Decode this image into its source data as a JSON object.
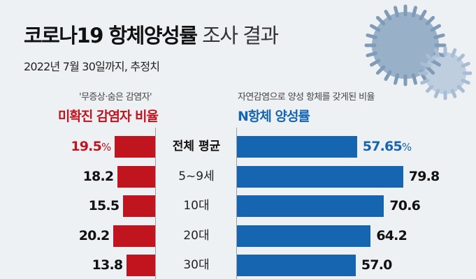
{
  "header": {
    "title_bold": "코로나19 항체양성률",
    "title_light": "조사 결과",
    "subtitle": "2022년 7월 30일까지, 추정치"
  },
  "colors": {
    "red": "#c0141f",
    "blue": "#1565b0",
    "background": "#eef1f4"
  },
  "chart_data": {
    "type": "bar",
    "categories": [
      "전체 평균",
      "5~9세",
      "10대",
      "20대",
      "30대"
    ],
    "series": [
      {
        "name": "미확진 감염자 비율",
        "subtitle": "'무증상·숨은 감염자'",
        "values": [
          19.5,
          18.2,
          15.5,
          20.2,
          13.8
        ],
        "labels": [
          "19.5",
          "18.2",
          "15.5",
          "20.2",
          "13.8"
        ],
        "color": "#c0141f",
        "direction": "left"
      },
      {
        "name": "N항체 양성률",
        "subtitle": "자연감염으로 양성 항체를 갖게된 비율",
        "values": [
          57.65,
          79.8,
          70.6,
          64.2,
          57.0
        ],
        "labels": [
          "57.65",
          "79.8",
          "70.6",
          "64.2",
          "57.0"
        ],
        "color": "#1565b0",
        "direction": "right"
      }
    ],
    "unit": "%",
    "xlabel": "",
    "ylabel": ""
  }
}
